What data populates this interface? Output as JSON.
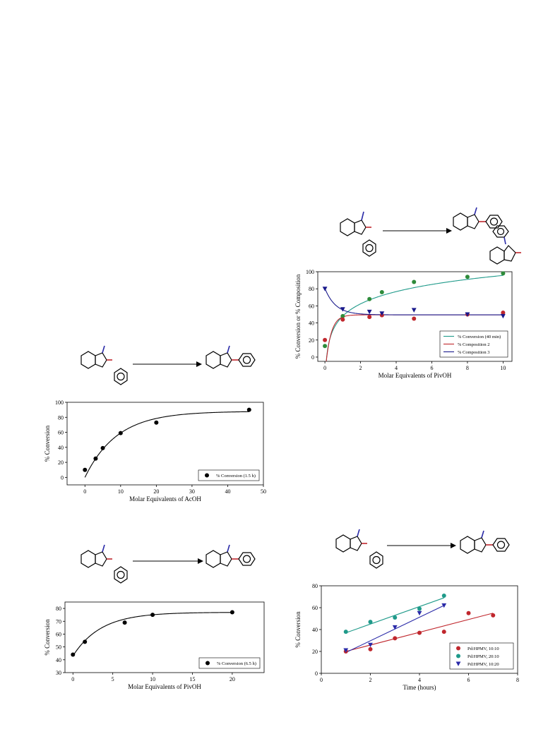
{
  "colors": {
    "red": "#c0272d",
    "teal": "#1f9a8a",
    "blue": "#2a2aa8",
    "green": "#2e8b3a",
    "navy": "#1a1a8c",
    "black": "#000000"
  },
  "chart_data": [
    {
      "id": "acoh",
      "type": "scatter",
      "xlabel": "Molar Equivalents of AcOH",
      "ylabel": "% Conversion",
      "xlim": [
        -5,
        50
      ],
      "ylim": [
        -10,
        100
      ],
      "xticks": [
        0,
        10,
        20,
        30,
        40,
        50
      ],
      "yticks": [
        0,
        20,
        40,
        60,
        80,
        100
      ],
      "grid": false,
      "legend_position": "bottom-right",
      "series": [
        {
          "name": "% Conversion (1.5 h)",
          "marker": "circle",
          "color": "#000000",
          "points": [
            [
              0,
              10
            ],
            [
              3,
              25
            ],
            [
              5,
              39
            ],
            [
              10,
              59
            ],
            [
              20,
              73
            ],
            [
              46,
              90
            ]
          ]
        }
      ]
    },
    {
      "id": "pivoh-6_5h",
      "type": "scatter",
      "xlabel": "Molar Equivalents of PivOH",
      "ylabel": "% Conversion",
      "xlim": [
        -1,
        24
      ],
      "ylim": [
        30,
        85
      ],
      "xticks": [
        0,
        5,
        10,
        15,
        20
      ],
      "yticks": [
        30,
        40,
        50,
        60,
        70,
        80
      ],
      "grid": false,
      "legend_position": "bottom-right",
      "series": [
        {
          "name": "% Conversion (6.5 h)",
          "marker": "circle",
          "color": "#000000",
          "points": [
            [
              0,
              44
            ],
            [
              1.5,
              54
            ],
            [
              6.5,
              69
            ],
            [
              10,
              75
            ],
            [
              20,
              77
            ]
          ]
        }
      ]
    },
    {
      "id": "pivoh-composition",
      "type": "scatter",
      "xlabel": "Molar Equivalents of PivOH",
      "ylabel": "% Conversion or % Composition",
      "xlim": [
        -0.4,
        10.5
      ],
      "ylim": [
        -5,
        100
      ],
      "xticks": [
        0,
        2,
        4,
        6,
        8,
        10
      ],
      "yticks": [
        0,
        20,
        40,
        60,
        80,
        100
      ],
      "grid": false,
      "legend_position": "bottom-right",
      "series": [
        {
          "name": "% Conversion (40 min)",
          "marker": "circle",
          "color": "#2e8b3a",
          "line_color": "#1f9a8a",
          "points": [
            [
              0,
              13
            ],
            [
              1,
              48
            ],
            [
              2.5,
              68
            ],
            [
              3.2,
              76
            ],
            [
              5,
              88
            ],
            [
              8,
              94
            ],
            [
              10,
              98
            ]
          ]
        },
        {
          "name": "% Composition 2",
          "marker": "circle",
          "color": "#c0272d",
          "line_color": "#c0272d",
          "points": [
            [
              0,
              20
            ],
            [
              1,
              44
            ],
            [
              2.5,
              47
            ],
            [
              3.2,
              49
            ],
            [
              5,
              45
            ],
            [
              8,
              50
            ],
            [
              10,
              52
            ]
          ]
        },
        {
          "name": "% Composition 3",
          "marker": "triangle-down",
          "color": "#1a1a8c",
          "line_color": "#1a1a8c",
          "points": [
            [
              0,
              80
            ],
            [
              1,
              56
            ],
            [
              2.5,
              53
            ],
            [
              3.2,
              51
            ],
            [
              5,
              55
            ],
            [
              8,
              50
            ],
            [
              10,
              48
            ]
          ]
        }
      ]
    },
    {
      "id": "time-course",
      "type": "scatter",
      "xlabel": "Time (hours)",
      "ylabel": "% Conversion",
      "xlim": [
        0,
        8
      ],
      "ylim": [
        0,
        80
      ],
      "xticks": [
        0,
        2,
        4,
        6,
        8
      ],
      "yticks": [
        0,
        20,
        40,
        60,
        80
      ],
      "grid": false,
      "legend_position": "bottom-right",
      "series": [
        {
          "name": "Pd:HPMV, 10:10",
          "marker": "circle",
          "color": "#c0272d",
          "points": [
            [
              1,
              20
            ],
            [
              2,
              22
            ],
            [
              3,
              32
            ],
            [
              4,
              37
            ],
            [
              5,
              38
            ],
            [
              6,
              55
            ],
            [
              7,
              53
            ]
          ],
          "fit": [
            [
              1,
              20
            ],
            [
              7,
              55
            ]
          ]
        },
        {
          "name": "Pd:HPMV, 20:10",
          "marker": "circle",
          "color": "#1f9a8a",
          "points": [
            [
              1,
              38
            ],
            [
              2,
              47
            ],
            [
              3,
              51
            ],
            [
              4,
              59
            ],
            [
              5,
              71
            ]
          ],
          "fit": [
            [
              1,
              37
            ],
            [
              5,
              69
            ]
          ]
        },
        {
          "name": "Pd:HPMV, 10:20",
          "marker": "triangle-down",
          "color": "#2a2aa8",
          "points": [
            [
              1,
              21
            ],
            [
              2,
              26
            ],
            [
              3,
              42
            ],
            [
              4,
              55
            ],
            [
              5,
              62
            ]
          ],
          "fit": [
            [
              1,
              19
            ],
            [
              5,
              62
            ]
          ]
        }
      ]
    }
  ]
}
